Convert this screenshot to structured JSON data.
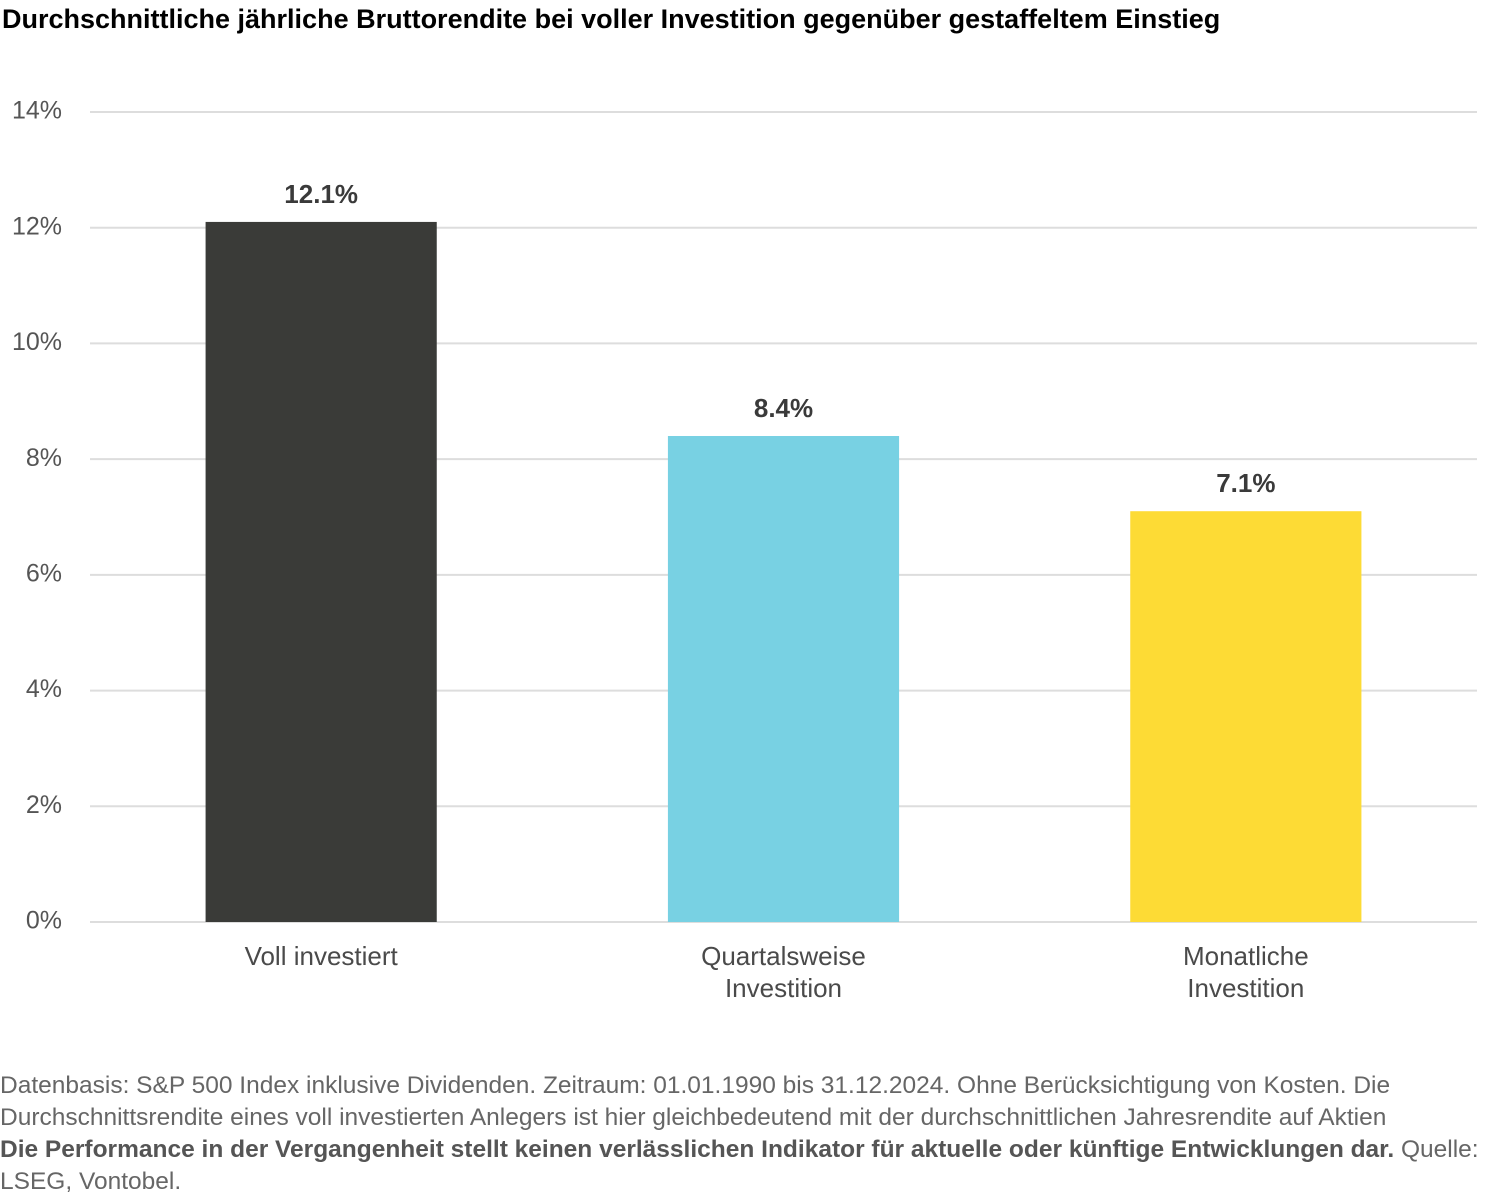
{
  "chart_data": {
    "type": "bar",
    "title": "Durchschnittliche jährliche Bruttorendite bei voller Investition gegenüber gestaffeltem Einstieg",
    "categories": [
      "Voll investiert",
      "Quartalsweise Investition",
      "Monatliche Investition"
    ],
    "values": [
      12.1,
      8.4,
      7.1
    ],
    "value_labels": [
      "12.1%",
      "8.4%",
      "7.1%"
    ],
    "colors": [
      "#3a3b38",
      "#78d1e3",
      "#fddb35"
    ],
    "ylim": [
      0,
      14
    ],
    "yticks": [
      {
        "value": 0,
        "label": "0%"
      },
      {
        "value": 2,
        "label": "2%"
      },
      {
        "value": 4,
        "label": "4%"
      },
      {
        "value": 6,
        "label": "6%"
      },
      {
        "value": 8,
        "label": "8%"
      },
      {
        "value": 10,
        "label": "10%"
      },
      {
        "value": 12,
        "label": "12%"
      },
      {
        "value": 14,
        "label": "14%"
      }
    ],
    "grid": true,
    "footnote": {
      "text": "Datenbasis: S&P 500 Index inklusive Dividenden. Zeitraum: 01.01.1990 bis 31.12.2024. Ohne Berücksichtigung von Kosten. Die Durchschnittsrendite eines voll investierten Anlegers ist hier gleichbedeutend mit der durchschnittlichen Jahresrendite auf Aktien",
      "bold": "Die Performance in der Vergangenheit stellt keinen verlässlichen Indikator für aktuelle oder künftige Entwicklungen dar.",
      "source": "Quelle: LSEG, Vontobel."
    }
  }
}
